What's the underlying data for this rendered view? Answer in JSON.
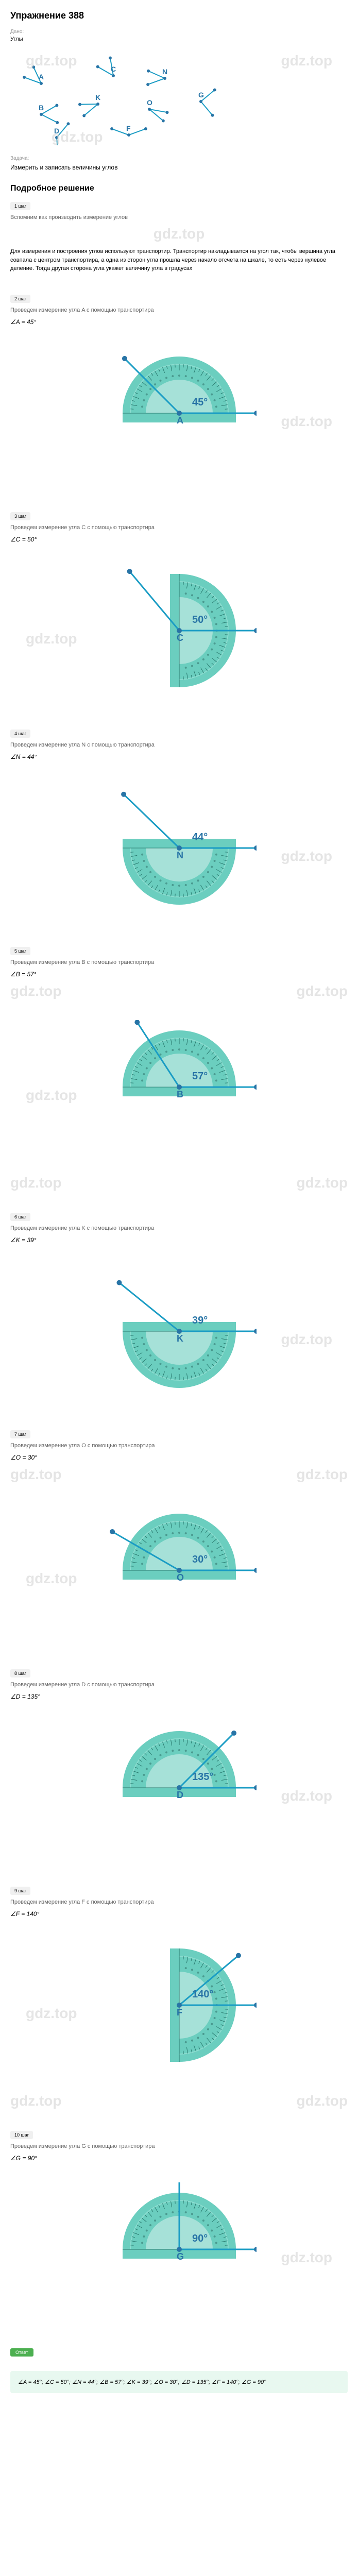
{
  "title": "Упражнение 388",
  "meta": {
    "dano_label": "Дано:",
    "angles_label": "Углы",
    "task_label": "Задача:",
    "task_text": "Измерить и записать величины углов"
  },
  "watermark": "gdz.top",
  "section_title": "Подробное решение",
  "intro": {
    "step": "1 шаг",
    "hint": "Вспомним как производить измерение углов",
    "text": "Для измерения и построения углов используют транспортир. Транспортир накладывается на угол так, чтобы вершина угла совпала с центром транспортира, а одна из сторон угла прошла через начало отсчета на шкале, то есть через нулевое деление. Тогда другая сторона угла укажет величину угла в градусах"
  },
  "angle_labels": [
    "A",
    "C",
    "N",
    "B",
    "K",
    "O",
    "G",
    "D",
    "F"
  ],
  "steps": [
    {
      "num": "2 шаг",
      "desc": "Проведем измерение угла A с помощью транспортира",
      "formula": "∠A = 45°",
      "letter": "A",
      "angle": 45,
      "color": "#5bc9b8",
      "rotation": 0,
      "flip": false
    },
    {
      "num": "3 шаг",
      "desc": "Проведем измерение угла C с помощью транспортира",
      "formula": "∠C = 50°",
      "letter": "C",
      "angle": 50,
      "color": "#5bc9b8",
      "rotation": 90,
      "flip": false
    },
    {
      "num": "4 шаг",
      "desc": "Проведем измерение угла N с помощью транспортира",
      "formula": "∠N = 44°",
      "letter": "N",
      "angle": 44,
      "color": "#5bc9b8",
      "rotation": 180,
      "flip": false
    },
    {
      "num": "5 шаг",
      "desc": "Проведем измерение угла B с помощью транспортира",
      "formula": "∠B = 57°",
      "letter": "B",
      "angle": 57,
      "color": "#5bc9b8",
      "rotation": 0,
      "flip": false
    },
    {
      "num": "6 шаг",
      "desc": "Проведем измерение угла K с помощью транспортира",
      "formula": "∠K = 39°",
      "letter": "K",
      "angle": 39,
      "color": "#5bc9b8",
      "rotation": 180,
      "flip": false
    },
    {
      "num": "7 шаг",
      "desc": "Проведем измерение угла O с помощью транспортира",
      "formula": "∠O = 30°",
      "letter": "O",
      "angle": 30,
      "color": "#5bc9b8",
      "rotation": 0,
      "flip": false
    },
    {
      "num": "8 шаг",
      "desc": "Проведем измерение угла D с помощью транспортира",
      "formula": "∠D = 135°",
      "letter": "D",
      "angle": 135,
      "color": "#5bc9b8",
      "rotation": 0,
      "flip": false
    },
    {
      "num": "9 шаг",
      "desc": "Проведем измерение угла F с помощью транспортира",
      "formula": "∠F = 140°",
      "letter": "F",
      "angle": 140,
      "color": "#5bc9b8",
      "rotation": 90,
      "flip": false
    },
    {
      "num": "10 шаг",
      "desc": "Проведем измерение угла G с помощью транспортира",
      "formula": "∠G = 90°",
      "letter": "G",
      "angle": 90,
      "color": "#5bc9b8",
      "rotation": 0,
      "flip": false
    }
  ],
  "answer": {
    "label": "Ответ",
    "text": "∠A = 45°; ∠C = 50°; ∠N = 44°; ∠B = 57°; ∠K = 39°; ∠O = 30°; ∠D = 135°; ∠F = 140°; ∠G = 90°"
  },
  "protractor_style": {
    "main_color": "#5bc9b8",
    "detail_color": "#8bdccf",
    "line_color": "#2c8f9c",
    "ray_color": "#1a9cc4",
    "point_color": "#2874a6",
    "text_color": "#2874a6"
  }
}
